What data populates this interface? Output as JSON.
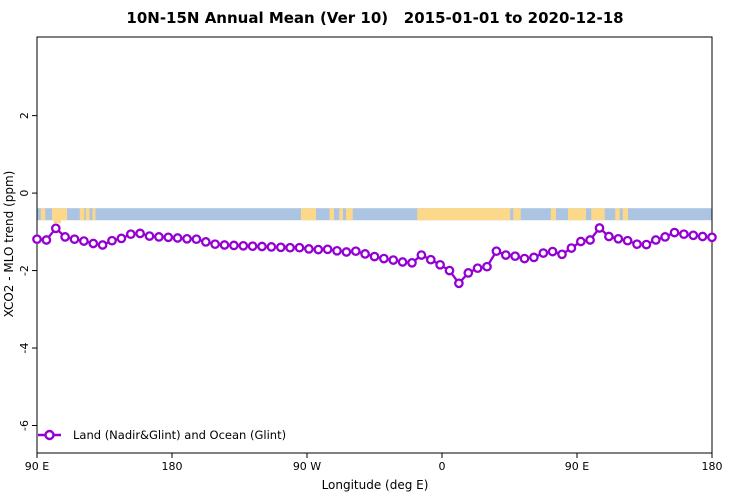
{
  "title": "10N-15N Annual Mean (Ver 10)   2015-01-01 to 2020-12-18",
  "legend": {
    "label": "Land (Nadir&Glint) and Ocean (Glint)"
  },
  "colors": {
    "series": "#9400d3",
    "ocean_band": "#aac4e2",
    "land_band": "#fcd88a",
    "axis": "#000000"
  },
  "chart_data": {
    "type": "line",
    "title": "10N-15N Annual Mean (Ver 10)   2015-01-01 to 2020-12-18",
    "xlabel": "Longitude (deg E)",
    "ylabel": "XCO2 - MLO trend (ppm)",
    "xlim": [
      90,
      540
    ],
    "ylim": [
      -6.71,
      4.03
    ],
    "grid": false,
    "legend_position": "bottom-left",
    "x_ticks": [
      {
        "lon": 90,
        "label": "90 E"
      },
      {
        "lon": 180,
        "label": "180"
      },
      {
        "lon": 270,
        "label": "90 W"
      },
      {
        "lon": 360,
        "label": "0"
      },
      {
        "lon": 450,
        "label": "90 E"
      },
      {
        "lon": 540,
        "label": "180"
      }
    ],
    "y_ticks": [
      {
        "value": 2,
        "label": "2"
      },
      {
        "value": 0,
        "label": "0"
      },
      {
        "value": -2,
        "label": "-2"
      },
      {
        "value": -4,
        "label": "-4"
      },
      {
        "value": -6,
        "label": "-6"
      }
    ],
    "series": [
      {
        "name": "Land (Nadir&Glint) and Ocean (Glint)",
        "color": "#9400d3",
        "marker": "open-circle",
        "x_start": 90,
        "x_step": 6.25,
        "values": [
          -1.19,
          -1.21,
          -0.91,
          -1.13,
          -1.19,
          -1.24,
          -1.3,
          -1.34,
          -1.23,
          -1.17,
          -1.06,
          -1.04,
          -1.11,
          -1.13,
          -1.14,
          -1.16,
          -1.18,
          -1.19,
          -1.26,
          -1.32,
          -1.34,
          -1.35,
          -1.36,
          -1.37,
          -1.38,
          -1.39,
          -1.4,
          -1.41,
          -1.41,
          -1.44,
          -1.46,
          -1.45,
          -1.49,
          -1.52,
          -1.5,
          -1.57,
          -1.64,
          -1.69,
          -1.73,
          -1.78,
          -1.8,
          -1.6,
          -1.72,
          -1.85,
          -2.0,
          -2.33,
          -2.06,
          -1.94,
          -1.9,
          -1.5,
          -1.6,
          -1.63,
          -1.69,
          -1.66,
          -1.55,
          -1.51,
          -1.58,
          -1.42,
          -1.25,
          -1.21,
          -0.9,
          -1.12,
          -1.18,
          -1.23,
          -1.32,
          -1.33,
          -1.21,
          -1.13,
          -1.02,
          -1.06,
          -1.09,
          -1.12,
          -1.14
        ]
      }
    ],
    "map_band": {
      "description": "land/ocean strip for latitude band 10N-15N",
      "value_range": [
        -0.39,
        -0.7
      ],
      "ocean_color": "#aac4e2",
      "land_color": "#fcd88a",
      "land_segments": [
        {
          "from": 92.5,
          "to": 95.5
        },
        {
          "from": 100,
          "to": 110
        },
        {
          "from": 118.5,
          "to": 121.5
        },
        {
          "from": 122.5,
          "to": 125
        },
        {
          "from": 127,
          "to": 129
        },
        {
          "from": 266,
          "to": 276
        },
        {
          "from": 285,
          "to": 288
        },
        {
          "from": 291.5,
          "to": 294
        },
        {
          "from": 296,
          "to": 300.5
        },
        {
          "from": 343.5,
          "to": 405.5
        },
        {
          "from": 407.5,
          "to": 412.5
        },
        {
          "from": 432.5,
          "to": 436
        },
        {
          "from": 444,
          "to": 456
        },
        {
          "from": 459.5,
          "to": 468.5
        },
        {
          "from": 475.5,
          "to": 478.5
        },
        {
          "from": 480.5,
          "to": 484
        }
      ],
      "land_below_band": [
        {
          "from": 101,
          "to": 106
        }
      ]
    }
  }
}
